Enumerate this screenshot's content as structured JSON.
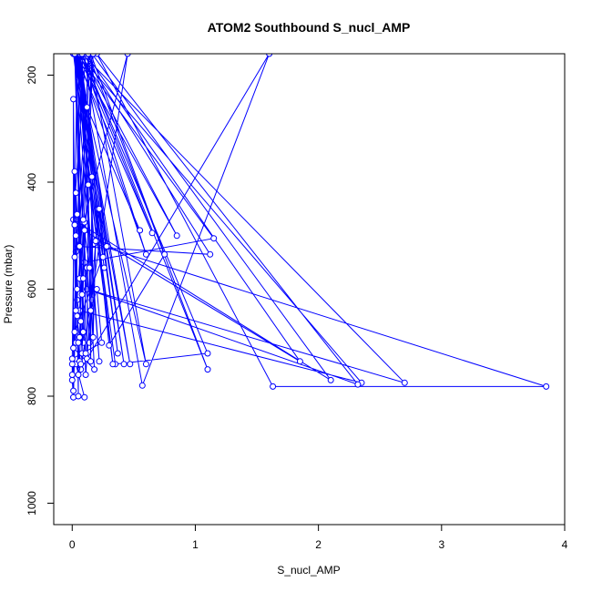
{
  "chart_data": {
    "type": "line",
    "title": "ATOM2 Southbound S_nucl_AMP",
    "xlabel": "S_nucl_AMP",
    "ylabel": "Pressure (mbar)",
    "xlim": [
      -0.15,
      4.0
    ],
    "ylim": [
      1040,
      160
    ],
    "y_reversed": true,
    "x_ticks": [
      0,
      1,
      2,
      3,
      4
    ],
    "y_ticks": [
      200,
      400,
      600,
      800,
      1000
    ],
    "grid": false,
    "legend": "none",
    "colors": {
      "series": "#0000ff",
      "axes": "#000000",
      "background": "#ffffff"
    },
    "marker": "open-circle",
    "series": [
      {
        "x": [
          0.55,
          0.12,
          0.05,
          0.85,
          0.03,
          0.2,
          0.01,
          0.35,
          1.1,
          0.08,
          0.6,
          0.04,
          1.15,
          0.1,
          0.02,
          0.65,
          0.06,
          0.3,
          0.75,
          0.15,
          0.05,
          1.12,
          0.09,
          0.57,
          1.6,
          0.07,
          0.45,
          0.03,
          0.14,
          0.6,
          0.02,
          0.22,
          0.04,
          0.02,
          1.85,
          0.11,
          0.01,
          2.1,
          0.16,
          0.06,
          2.35,
          0.05,
          0.18,
          3.85,
          1.63,
          0.2,
          2.32,
          0.12,
          2.7,
          0.08,
          1.1,
          0.13,
          0.06,
          0.05,
          0.42,
          0.03,
          0.07,
          0.17,
          0.04,
          0.09,
          0.02,
          0.26,
          0.05,
          0.33,
          0.01,
          0.47,
          0.04,
          0.37,
          0.06,
          0.29,
          0.03,
          0.21,
          0.11,
          0.02,
          0.14,
          0.16,
          0.08,
          0.01,
          0.1,
          0.03
        ],
        "y": [
          490,
          260,
          150,
          500,
          160,
          510,
          160,
          740,
          720,
          160,
          535,
          160,
          505,
          550,
          160,
          495,
          160,
          705,
          535,
          160,
          520,
          535,
          160,
          780,
          160,
          750,
          160,
          530,
          160,
          740,
          160,
          735,
          160,
          480,
          735,
          160,
          470,
          770,
          160,
          640,
          775,
          160,
          515,
          782,
          782,
          160,
          778,
          600,
          775,
          160,
          750,
          160,
          580,
          160,
          740,
          160,
          690,
          160,
          620,
          700,
          160,
          560,
          160,
          740,
          160,
          740,
          160,
          720,
          160,
          520,
          160,
          450,
          760,
          160,
          700,
          620,
          160,
          802,
          802,
          740
        ]
      },
      {
        "x": [
          0.0,
          0.0,
          0.01,
          0.01,
          0.02,
          0.02,
          0.03,
          0.03,
          0.04,
          0.04,
          0.05,
          0.05,
          0.06,
          0.07,
          0.08,
          0.09,
          0.1,
          0.11,
          0.12,
          0.13,
          0.15,
          0.16,
          0.17,
          0.19,
          0.22,
          0.25,
          0.28,
          0.02,
          0.0,
          0.01,
          0.03,
          0.05,
          0.07,
          0.09,
          0.12,
          0.15,
          0.2,
          0.24,
          0.0,
          0.02,
          0.04,
          0.06,
          0.08,
          0.1,
          0.14,
          0.18,
          0.01,
          0.03,
          0.06,
          0.09
        ],
        "y": [
          740,
          770,
          802,
          245,
          480,
          540,
          700,
          420,
          600,
          650,
          800,
          700,
          735,
          660,
          720,
          580,
          475,
          720,
          730,
          405,
          735,
          390,
          690,
          510,
          450,
          540,
          520,
          680,
          760,
          790,
          500,
          760,
          740,
          680,
          560,
          640,
          600,
          700,
          730,
          380,
          460,
          520,
          610,
          490,
          560,
          750,
          710,
          640,
          690,
          470
        ]
      }
    ]
  }
}
